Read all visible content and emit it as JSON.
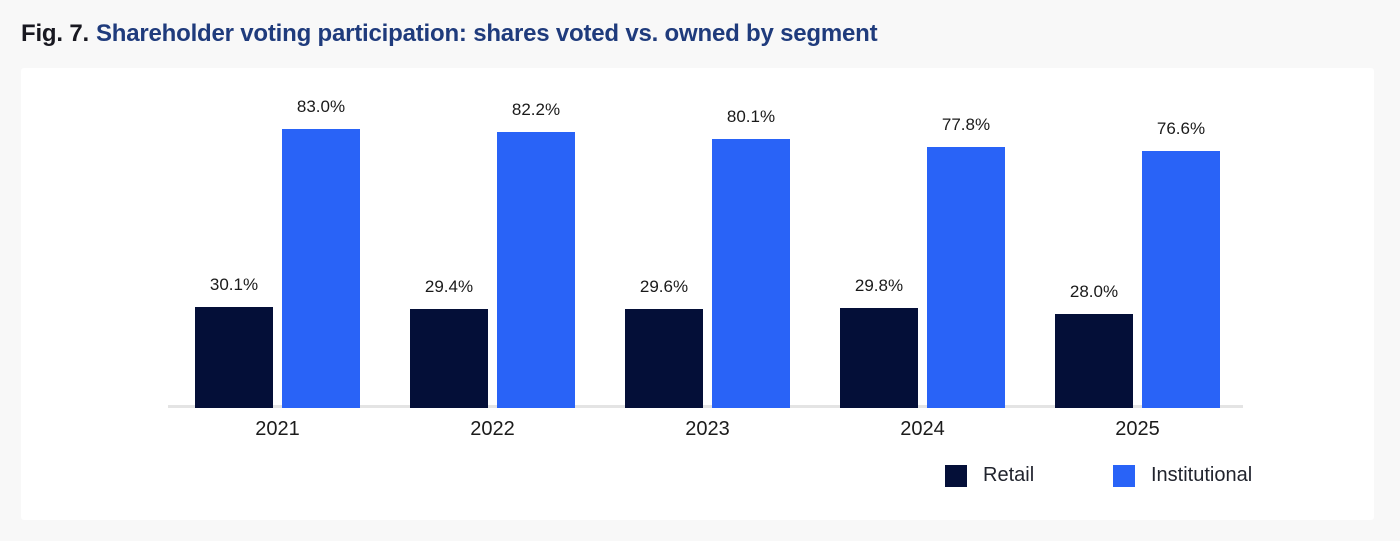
{
  "figure": {
    "label": "Fig. 7.",
    "title": "Shareholder voting participation: shares voted vs. owned by segment"
  },
  "colors": {
    "page_background": "#f8f8f8",
    "panel_background": "#ffffff",
    "title_label": "#181820",
    "title_text": "#1f3b7c",
    "retail": "#040f38",
    "institutional": "#2963f7",
    "axis_line": "#e4e4e4",
    "data_label": "#1a1a1a"
  },
  "legend": {
    "position": "bottom-right",
    "items": [
      {
        "label": "Retail",
        "color": "#040f38"
      },
      {
        "label": "Institutional",
        "color": "#2963f7"
      }
    ]
  },
  "chart_data": {
    "type": "bar",
    "title": "Fig. 7. Shareholder voting participation: shares voted vs. owned by segment",
    "categories": [
      "2021",
      "2022",
      "2023",
      "2024",
      "2025"
    ],
    "series": [
      {
        "name": "Retail",
        "color": "#040f38",
        "values": [
          30.1,
          29.4,
          29.6,
          29.8,
          28.0
        ]
      },
      {
        "name": "Institutional",
        "color": "#2963f7",
        "values": [
          83.0,
          82.2,
          80.1,
          77.8,
          76.6
        ]
      }
    ],
    "value_labels": [
      [
        "30.1%",
        "29.4%",
        "29.6%",
        "29.8%",
        "28.0%"
      ],
      [
        "83.0%",
        "82.2%",
        "80.1%",
        "77.8%",
        "76.6%"
      ]
    ],
    "xlabel": "",
    "ylabel": "",
    "unit": "%",
    "ylim": [
      0,
      100
    ],
    "grid": false,
    "y_axis_visible": false,
    "data_labels": true,
    "legend_position": "bottom-right"
  }
}
